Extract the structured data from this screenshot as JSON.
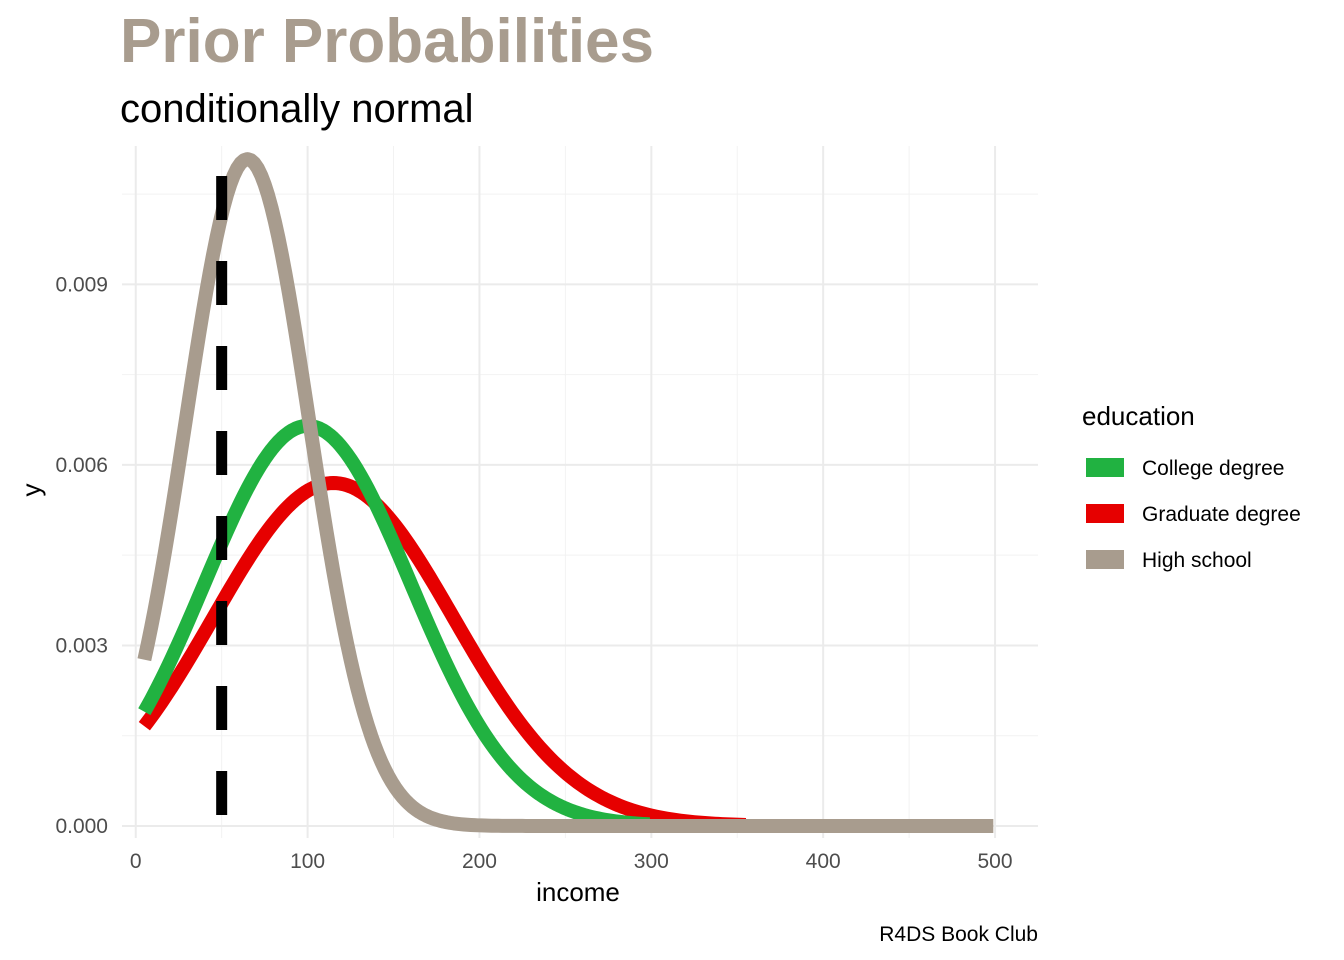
{
  "chart_data": {
    "type": "line",
    "title": "Prior Probabilities",
    "subtitle": "conditionally normal",
    "caption": "R4DS Book Club",
    "xlabel": "income",
    "ylabel": "y",
    "xlim": [
      -8,
      525
    ],
    "ylim": [
      -0.0002,
      0.0113
    ],
    "xticks": [
      0,
      100,
      200,
      300,
      400,
      500
    ],
    "xtick_labels": [
      "0",
      "100",
      "200",
      "300",
      "400",
      "500"
    ],
    "yticks": [
      0,
      0.003,
      0.006,
      0.009
    ],
    "ytick_labels": [
      "0.000",
      "0.003",
      "0.006",
      "0.009"
    ],
    "grid": true,
    "legend": {
      "title": "education",
      "position": "right"
    },
    "reference_line": {
      "x": 50,
      "style": "dashed",
      "color": "#000000"
    },
    "series": [
      {
        "name": "College degree",
        "color": "#21B241",
        "mean": 100,
        "sd": 60,
        "x_range": [
          5,
          300
        ]
      },
      {
        "name": "Graduate degree",
        "color": "#E60000",
        "mean": 115,
        "sd": 70,
        "x_range": [
          5,
          355
        ]
      },
      {
        "name": "High school",
        "color": "#A89C8E",
        "mean": 65,
        "sd": 36,
        "x_range": [
          5,
          500
        ]
      }
    ],
    "colors": {
      "title": "#A89C8E"
    }
  }
}
